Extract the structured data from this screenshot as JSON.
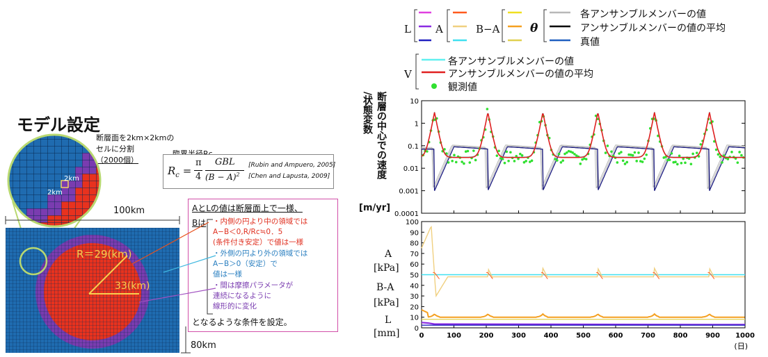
{
  "model": {
    "title": "モデル設定",
    "fault_division_lines": [
      "断層面を2km×2kmの",
      "セルに分割",
      "（2000個）"
    ],
    "zoom_cell_label_1": "2km",
    "zoom_cell_label_2": "2km",
    "width_label": "100km",
    "height_label": "80km",
    "radius_label": "R＝29(km)",
    "outer_radius_label": "33(km)",
    "critical_radius_title": "臨界半径Rc",
    "formula_lhs": "R",
    "formula_sub": "c",
    "formula_eq": "=",
    "formula_pi": "π",
    "formula_four": "4",
    "formula_num": "GBL",
    "formula_den": "(B − A)",
    "formula_sq": "2",
    "ref1": "[Rubin and Ampuero, 2005]",
    "ref2": "[Chen and Lapusta, 2009]",
    "conditions": {
      "line1": "AとLの値は断層面上で一様、",
      "b_intro": "Bは",
      "inner_1": "・内側の円より中の領域では",
      "inner_2": "A−B＜0,R/Rc≒0．5",
      "inner_3": "(条件付き安定）で値は一様",
      "outer_1": "・外側の円より外の領域では",
      "outer_2": "A−B＞0（安定）で",
      "outer_3": "値は一様",
      "between_1": "・間は摩擦パラメータが",
      "between_2": "連続になるように",
      "between_3": "線形的に変化",
      "footer": "となるような条件を設定。"
    }
  },
  "legend": {
    "L": "L",
    "A": "A",
    "BA": "B−A",
    "theta": "θ",
    "V": "V",
    "members": "各アンサンブルメンバーの値",
    "mean": "アンサンブルメンバーの値の平均",
    "truth": "真値",
    "v_members": "各アンサンブルメンバーの値",
    "v_mean": "アンサンブルメンバーの値の平均",
    "observed": "観測値"
  },
  "colors": {
    "L": [
      "#e040e0",
      "#8a2be2",
      "#2020c0"
    ],
    "A": [
      "#ff5a1e",
      "#f0d080",
      "#40e0f0"
    ],
    "BA": [
      "#f0e020",
      "#f5a020",
      "#e0d050"
    ],
    "theta_members": "#b8b8b8",
    "theta_mean": "#000000",
    "theta_truth": "#2060c0",
    "v_members": "#60f0f0",
    "v_mean": "#e02020",
    "observed": "#30e030",
    "fault_blue": "#1f6bb0",
    "fault_red": "#e8321e",
    "fault_purple": "#7a3cb0"
  },
  "chart_data": [
    {
      "type": "line",
      "panel": "velocity",
      "ylabel_lines": [
        "断",
        "層",
        "の",
        "中",
        "心",
        "で",
        "の",
        "速",
        "度",
        "/状",
        "態",
        "変",
        "数"
      ],
      "ylabel_vertical_1": "断層の中心での速度",
      "ylabel_vertical_2": "/状態変数",
      "unit": "[m/yr]",
      "yscale": "log",
      "ylim": [
        0.0001,
        10
      ],
      "yticks": [
        "10",
        "1",
        "0.1",
        "0.01",
        "0.001",
        "0.0001"
      ],
      "xlim": [
        0,
        1000
      ],
      "event_times": [
        40,
        205,
        375,
        545,
        720,
        890
      ],
      "peak_velocity": 3,
      "baseline_velocity": 0.03,
      "theta_min": 0.001,
      "theta_max": 0.1
    },
    {
      "type": "line",
      "panel": "parameters",
      "ylim": [
        0,
        100
      ],
      "yticks": [
        "100",
        "90",
        "80",
        "70",
        "60",
        "50",
        "40",
        "30",
        "20",
        "10",
        "0"
      ],
      "xlim": [
        0,
        1000
      ],
      "xticks": [
        "0",
        "100",
        "200",
        "300",
        "400",
        "500",
        "600",
        "700",
        "800",
        "900",
        "1000"
      ],
      "xunit": "(日)",
      "labels": {
        "A": "A",
        "A_unit": "[kPa]",
        "BA": "B-A",
        "BA_unit": "[kPa]",
        "L": "L",
        "L_unit": "[mm]"
      },
      "true_A": 50,
      "A_estimate_level": 48,
      "BA_estimate_level": 10,
      "L_level": 3
    }
  ]
}
